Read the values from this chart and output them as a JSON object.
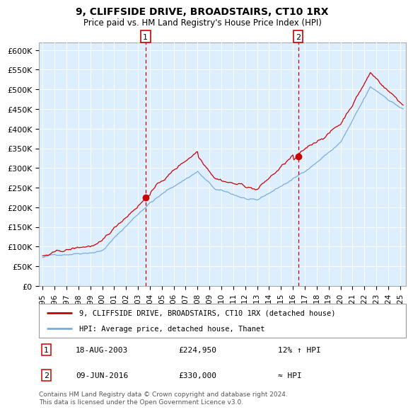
{
  "title": "9, CLIFFSIDE DRIVE, BROADSTAIRS, CT10 1RX",
  "subtitle": "Price paid vs. HM Land Registry's House Price Index (HPI)",
  "legend_line1": "9, CLIFFSIDE DRIVE, BROADSTAIRS, CT10 1RX (detached house)",
  "legend_line2": "HPI: Average price, detached house, Thanet",
  "annotation1_date": "18-AUG-2003",
  "annotation1_price": "£224,950",
  "annotation1_hpi": "12% ↑ HPI",
  "annotation2_date": "09-JUN-2016",
  "annotation2_price": "£330,000",
  "annotation2_hpi": "≈ HPI",
  "vline1_x": 2003.63,
  "vline2_x": 2016.44,
  "marker1_x": 2003.63,
  "marker1_y": 224950,
  "marker2_x": 2016.44,
  "marker2_y": 330000,
  "ylim_max": 620000,
  "xlim_start": 1994.7,
  "xlim_end": 2025.5,
  "red_color": "#cc0000",
  "blue_color": "#7aaddc",
  "bg_color": "#ddeeff",
  "grid_color": "#ffffff",
  "footer": "Contains HM Land Registry data © Crown copyright and database right 2024.\nThis data is licensed under the Open Government Licence v3.0.",
  "yticks": [
    0,
    50000,
    100000,
    150000,
    200000,
    250000,
    300000,
    350000,
    400000,
    450000,
    500000,
    550000,
    600000
  ],
  "ytick_labels": [
    "£0",
    "£50K",
    "£100K",
    "£150K",
    "£200K",
    "£250K",
    "£300K",
    "£350K",
    "£400K",
    "£450K",
    "£500K",
    "£550K",
    "£600K"
  ],
  "xtick_years": [
    1995,
    1996,
    1997,
    1998,
    1999,
    2000,
    2001,
    2002,
    2003,
    2004,
    2005,
    2006,
    2007,
    2008,
    2009,
    2010,
    2011,
    2012,
    2013,
    2014,
    2015,
    2016,
    2017,
    2018,
    2019,
    2020,
    2021,
    2022,
    2023,
    2024,
    2025
  ]
}
